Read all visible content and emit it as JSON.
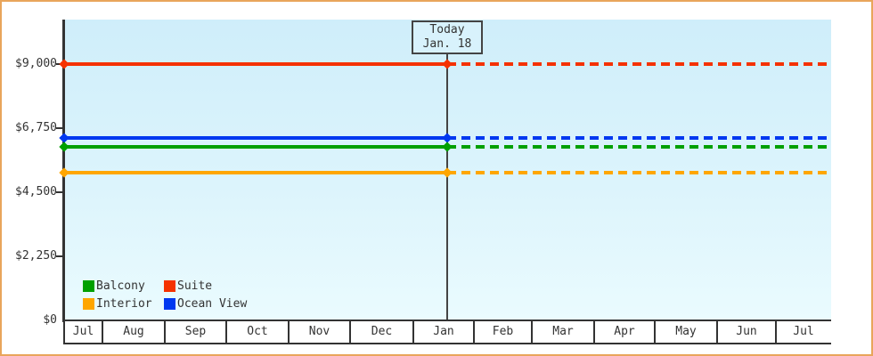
{
  "colors": {
    "frame_border": "#E9A55B",
    "plot_bg_top": "#CFEEFA",
    "plot_bg_bottom": "#EAFBFE",
    "axis": "#333333",
    "text": "#333333",
    "today_line": "#444444",
    "today_box_bg": "#D8F2FC",
    "today_box_border": "#444444"
  },
  "today_box": {
    "line1": "Today",
    "line2": "Jan. 18"
  },
  "legend": {
    "items": [
      {
        "label": "Balcony",
        "color": "#00A000"
      },
      {
        "label": "Suite",
        "color": "#F53200"
      },
      {
        "label": "Interior",
        "color": "#FFA600"
      },
      {
        "label": "Ocean View",
        "color": "#0038F0"
      }
    ]
  },
  "chart_data": {
    "type": "line",
    "title": "",
    "xlabel": "",
    "ylabel": "",
    "x_categories": [
      "Jul",
      "Aug",
      "Sep",
      "Oct",
      "Nov",
      "Dec",
      "Jan",
      "Feb",
      "Mar",
      "Apr",
      "May",
      "Jun",
      "Jul"
    ],
    "y_axis": {
      "ylim": [
        0,
        9000
      ],
      "ticks": [
        {
          "value": 0,
          "label": "$0"
        },
        {
          "value": 2250,
          "label": "$2,250"
        },
        {
          "value": 4500,
          "label": "$4,500"
        },
        {
          "value": 6750,
          "label": "$6,750"
        },
        {
          "value": 9000,
          "label": "$9,000"
        }
      ]
    },
    "today": {
      "label": "Today",
      "date": "Jan. 18"
    },
    "series": [
      {
        "name": "Suite",
        "color": "#F53200",
        "value": 9000,
        "style_before_today": "solid",
        "style_after_today": "dashed"
      },
      {
        "name": "Ocean View",
        "color": "#0038F0",
        "value": 6400,
        "style_before_today": "solid",
        "style_after_today": "dashed"
      },
      {
        "name": "Balcony",
        "color": "#00A000",
        "value": 6100,
        "style_before_today": "solid",
        "style_after_today": "dashed"
      },
      {
        "name": "Interior",
        "color": "#FFA600",
        "value": 5200,
        "style_before_today": "solid",
        "style_after_today": "dashed"
      }
    ],
    "notes": "All series are flat (constant price) across the full date range; lines are solid before Today (Jan. 18) and dotted after. Diamond markers at the axis start and at the Today line.",
    "legend_position": "bottom-left",
    "grid": false
  }
}
